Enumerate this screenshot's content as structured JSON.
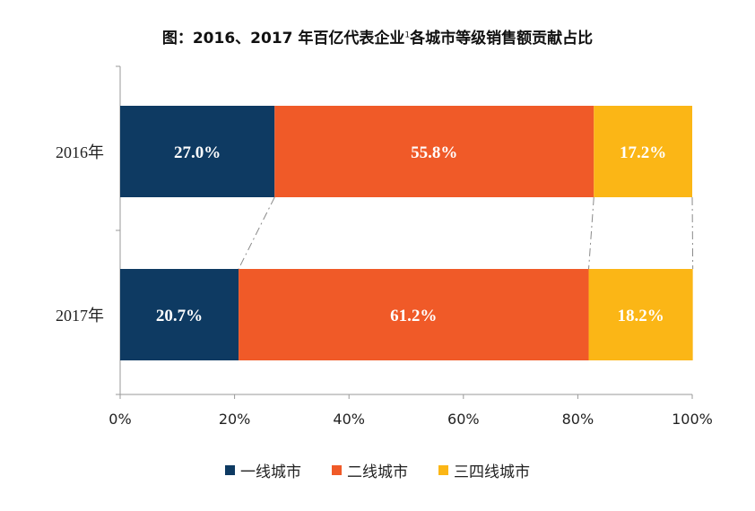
{
  "title": {
    "main": "图：2016、2017 年百亿代表企业",
    "sup": "1",
    "tail": "各城市等级销售额贡献占比"
  },
  "chart_data": {
    "type": "bar",
    "orientation": "horizontal",
    "stacked": "percent",
    "categories": [
      "2016年",
      "2017年"
    ],
    "series": [
      {
        "name": "一线城市",
        "values": [
          27.0,
          20.7
        ],
        "color": "#0e3a62"
      },
      {
        "name": "二线城市",
        "values": [
          55.8,
          61.2
        ],
        "color": "#f05a28"
      },
      {
        "name": "三四线城市",
        "values": [
          17.2,
          18.2
        ],
        "color": "#fbb616"
      }
    ],
    "data_labels": [
      [
        "27.0%",
        "55.8%",
        "17.2%"
      ],
      [
        "20.7%",
        "61.2%",
        "18.2%"
      ]
    ],
    "xlim": [
      0,
      100
    ],
    "x_ticks": [
      "0%",
      "20%",
      "40%",
      "60%",
      "80%",
      "100%"
    ],
    "grid": false,
    "legend": "bottom"
  }
}
